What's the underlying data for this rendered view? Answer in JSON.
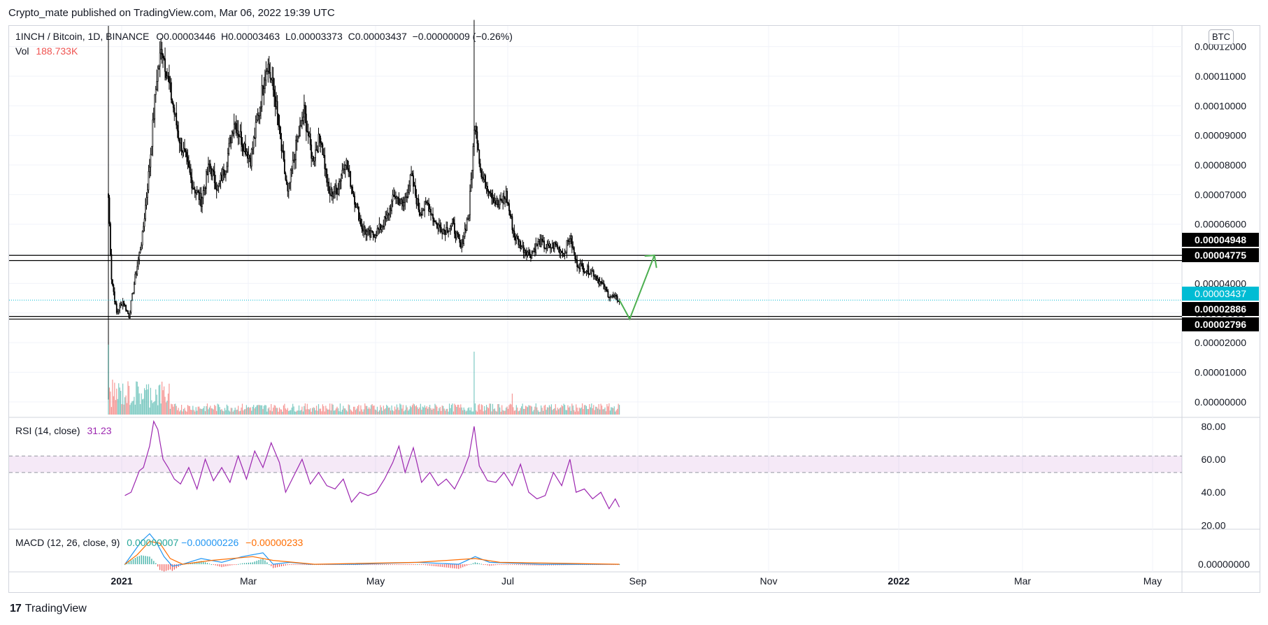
{
  "header": {
    "published": "Crypto_mate published on TradingView.com, Mar 06, 2022 19:39 UTC"
  },
  "footer": {
    "brand": "TradingView",
    "logo_glyph": "17"
  },
  "legend": {
    "symbol": "1INCH / Bitcoin, 1D, BINANCE",
    "o": "O0.00003446",
    "h": "H0.00003463",
    "l": "L0.00003373",
    "c": "C0.00003437",
    "change": "−0.00000009 (−0.26%)",
    "vol_label": "Vol",
    "vol_value": "188.733K",
    "rsi_label": "RSI (14, close)",
    "rsi_value": "31.23",
    "macd_label": "MACD (12, 26, close, 9)",
    "macd_v1": "0.00000007",
    "macd_v2": "−0.00000226",
    "macd_v3": "−0.00000233"
  },
  "currency_badge": "BTC",
  "chart_data": {
    "type": "candlestick",
    "title": "1INCH / Bitcoin, 1D, BINANCE",
    "x_ticks": [
      "2021",
      "Mar",
      "May",
      "Jul",
      "Sep",
      "Nov",
      "2022",
      "Mar",
      "May"
    ],
    "y_ticks": [
      "0.00012000",
      "0.00011000",
      "0.00010000",
      "0.00009000",
      "0.00008000",
      "0.00007000",
      "0.00006000",
      "0.00005000",
      "0.00004000",
      "0.00003000",
      "0.00002000",
      "0.00001000",
      "0.00000000"
    ],
    "ylim": [
      -5e-06,
      0.000127
    ],
    "price_path": [
      [
        0,
        6.9e-05
      ],
      [
        3,
        4.2e-05
      ],
      [
        8,
        3e-05
      ],
      [
        14,
        3.4e-05
      ],
      [
        20,
        2.9e-05
      ],
      [
        26,
        4.2e-05
      ],
      [
        33,
        5.6e-05
      ],
      [
        40,
        8e-05
      ],
      [
        47,
        0.00011
      ],
      [
        52,
        0.00012
      ],
      [
        60,
        0.000105
      ],
      [
        68,
        9e-05
      ],
      [
        75,
        8.2e-05
      ],
      [
        82,
        7.3e-05
      ],
      [
        90,
        6.8e-05
      ],
      [
        98,
        8e-05
      ],
      [
        106,
        7.2e-05
      ],
      [
        114,
        8e-05
      ],
      [
        122,
        9.5e-05
      ],
      [
        130,
        8.8e-05
      ],
      [
        138,
        8.2e-05
      ],
      [
        146,
        9.8e-05
      ],
      [
        154,
        0.000115
      ],
      [
        162,
        0.000102
      ],
      [
        168,
        8.5e-05
      ],
      [
        174,
        7e-05
      ],
      [
        182,
        8.6e-05
      ],
      [
        190,
        9.8e-05
      ],
      [
        198,
        8.2e-05
      ],
      [
        206,
        9e-05
      ],
      [
        214,
        7e-05
      ],
      [
        222,
        7.2e-05
      ],
      [
        230,
        8.2e-05
      ],
      [
        238,
        7e-05
      ],
      [
        246,
        5.9e-05
      ],
      [
        254,
        5.6e-05
      ],
      [
        262,
        5.8e-05
      ],
      [
        270,
        6.2e-05
      ],
      [
        278,
        7e-05
      ],
      [
        286,
        6.6e-05
      ],
      [
        294,
        7.6e-05
      ],
      [
        302,
        6.4e-05
      ],
      [
        310,
        6.7e-05
      ],
      [
        318,
        6e-05
      ],
      [
        326,
        5.8e-05
      ],
      [
        334,
        6e-05
      ],
      [
        342,
        5.2e-05
      ],
      [
        350,
        6.4e-05
      ],
      [
        356,
        9.6e-05
      ],
      [
        362,
        7.6e-05
      ],
      [
        370,
        7.2e-05
      ],
      [
        378,
        6.6e-05
      ],
      [
        386,
        7e-05
      ],
      [
        394,
        5.6e-05
      ],
      [
        402,
        5.2e-05
      ],
      [
        410,
        5e-05
      ],
      [
        418,
        5.4e-05
      ],
      [
        426,
        5.2e-05
      ],
      [
        434,
        5.3e-05
      ],
      [
        442,
        5e-05
      ],
      [
        448,
        5.6e-05
      ],
      [
        454,
        4.7e-05
      ],
      [
        462,
        4.5e-05
      ],
      [
        470,
        4.4e-05
      ],
      [
        478,
        4e-05
      ],
      [
        486,
        3.6e-05
      ],
      [
        492,
        3.5e-05
      ],
      [
        496,
        3.44e-05
      ]
    ],
    "candle_count": 497,
    "first_date": "2020-12-25",
    "horizontal_levels": [
      4.948e-05,
      4.775e-05,
      2.886e-05,
      2.796e-05
    ],
    "current_price": 3.437e-05,
    "level_labels": [
      "0.00004948",
      "0.00004775",
      "0.00002886",
      "0.00002796"
    ],
    "current_label": "0.00003437",
    "projection": [
      [
        496,
        3.44e-05
      ],
      [
        506,
        2.8e-05
      ],
      [
        530,
        4.95e-05
      ],
      [
        527,
        4.8e-05
      ],
      [
        530,
        4.95e-05
      ],
      [
        525,
        4.95e-05
      ]
    ],
    "volume_max_label": "",
    "rsi": {
      "ticks": [
        "80.00",
        "60.00",
        "40.00",
        "20.00"
      ],
      "ylim": [
        18,
        85
      ],
      "band": [
        52,
        62
      ],
      "path": [
        [
          16,
          38
        ],
        [
          22,
          40
        ],
        [
          27,
          48
        ],
        [
          30,
          53
        ],
        [
          34,
          55
        ],
        [
          40,
          68
        ],
        [
          44,
          83
        ],
        [
          48,
          78
        ],
        [
          53,
          60
        ],
        [
          58,
          55
        ],
        [
          64,
          48
        ],
        [
          70,
          45
        ],
        [
          78,
          55
        ],
        [
          86,
          42
        ],
        [
          94,
          60
        ],
        [
          102,
          47
        ],
        [
          110,
          55
        ],
        [
          118,
          46
        ],
        [
          126,
          62
        ],
        [
          134,
          48
        ],
        [
          142,
          65
        ],
        [
          150,
          55
        ],
        [
          158,
          70
        ],
        [
          166,
          58
        ],
        [
          172,
          40
        ],
        [
          180,
          50
        ],
        [
          188,
          60
        ],
        [
          196,
          45
        ],
        [
          204,
          52
        ],
        [
          212,
          44
        ],
        [
          220,
          42
        ],
        [
          228,
          48
        ],
        [
          236,
          34
        ],
        [
          244,
          40
        ],
        [
          252,
          38
        ],
        [
          260,
          40
        ],
        [
          268,
          48
        ],
        [
          276,
          58
        ],
        [
          282,
          68
        ],
        [
          288,
          52
        ],
        [
          296,
          67
        ],
        [
          304,
          46
        ],
        [
          312,
          52
        ],
        [
          320,
          44
        ],
        [
          328,
          48
        ],
        [
          336,
          42
        ],
        [
          344,
          52
        ],
        [
          350,
          62
        ],
        [
          355,
          80
        ],
        [
          360,
          56
        ],
        [
          368,
          47
        ],
        [
          376,
          46
        ],
        [
          384,
          52
        ],
        [
          392,
          44
        ],
        [
          400,
          57
        ],
        [
          408,
          40
        ],
        [
          416,
          36
        ],
        [
          424,
          38
        ],
        [
          432,
          52
        ],
        [
          440,
          44
        ],
        [
          448,
          60
        ],
        [
          454,
          40
        ],
        [
          462,
          42
        ],
        [
          470,
          36
        ],
        [
          478,
          40
        ],
        [
          486,
          30
        ],
        [
          492,
          36
        ],
        [
          496,
          31
        ]
      ]
    },
    "macd": {
      "tick": "0.00000000",
      "ylim": [
        -4e-06,
        1.8e-05
      ],
      "macd_path": [
        [
          16,
          0.0
        ],
        [
          24,
          6e-06
        ],
        [
          32,
          1.2e-05
        ],
        [
          40,
          1.6e-05
        ],
        [
          46,
          1.2e-05
        ],
        [
          54,
          4e-06
        ],
        [
          62,
          -1e-06
        ],
        [
          72,
          0.0
        ],
        [
          90,
          3e-06
        ],
        [
          110,
          1e-06
        ],
        [
          130,
          4e-06
        ],
        [
          150,
          6e-06
        ],
        [
          160,
          0.0
        ],
        [
          176,
          1e-06
        ],
        [
          196,
          0.0
        ],
        [
          240,
          0.0
        ],
        [
          300,
          1e-06
        ],
        [
          340,
          0.0
        ],
        [
          356,
          4e-06
        ],
        [
          370,
          1e-06
        ],
        [
          420,
          0.0
        ],
        [
          496,
          0.0
        ]
      ],
      "signal_path": [
        [
          16,
          0.0
        ],
        [
          28,
          5e-06
        ],
        [
          40,
          1.2e-05
        ],
        [
          50,
          1.1e-05
        ],
        [
          60,
          3e-06
        ],
        [
          72,
          0.0
        ],
        [
          100,
          2e-06
        ],
        [
          140,
          4e-06
        ],
        [
          160,
          2e-06
        ],
        [
          200,
          0.0
        ],
        [
          300,
          1e-06
        ],
        [
          356,
          3e-06
        ],
        [
          380,
          1e-06
        ],
        [
          496,
          0.0
        ]
      ]
    }
  },
  "colors": {
    "up": "#26a69a",
    "down": "#ef5350",
    "rsi": "#9c27b0",
    "macd": "#2196f3",
    "signal": "#ff6d00",
    "projection": "#4caf50",
    "current": "#00bcd4"
  }
}
